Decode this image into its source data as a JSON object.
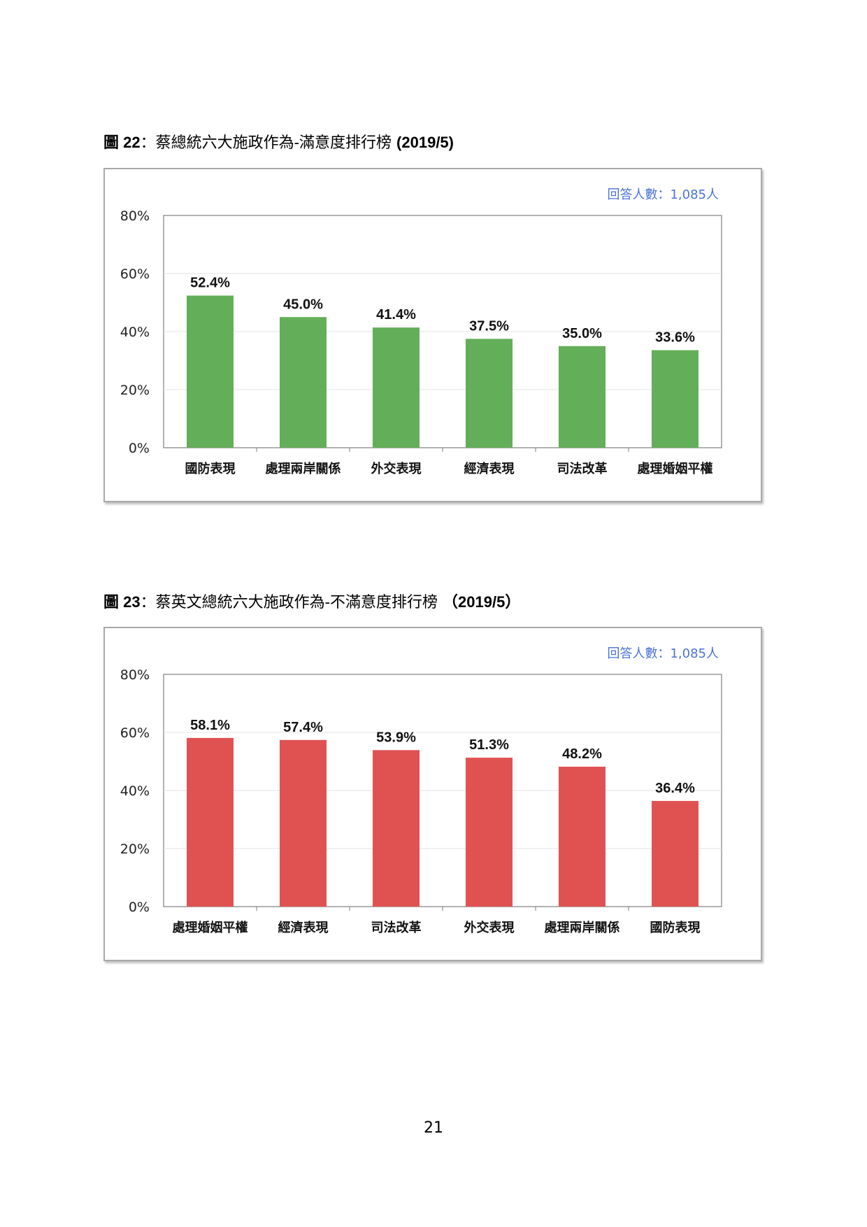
{
  "page": {
    "number": "21"
  },
  "figures": [
    {
      "caption_num": "圖 22",
      "caption_colon": "：",
      "caption_text": "蔡總統六大施政作為-滿意度排行榜",
      "caption_date": "(2019/5)",
      "respondents": "回答人數：1,085人",
      "bar_color": "#63ae58"
    },
    {
      "caption_num": "圖 23",
      "caption_colon": "：",
      "caption_text": "蔡英文總統六大施政作為-不滿意度排行榜",
      "caption_date": "（2019/5）",
      "respondents": "回答人數：1,085人",
      "bar_color": "#e05252"
    }
  ],
  "chart_data": [
    {
      "type": "bar",
      "title": "",
      "xlabel": "",
      "ylabel": "",
      "ylim": [
        0,
        80
      ],
      "yticks": [
        "0%",
        "20%",
        "40%",
        "60%",
        "80%"
      ],
      "categories": [
        "國防表現",
        "處理兩岸關係",
        "外交表現",
        "經濟表現",
        "司法改革",
        "處理婚姻平權"
      ],
      "values": [
        52.4,
        45.0,
        41.4,
        37.5,
        35.0,
        33.6
      ],
      "value_labels": [
        "52.4%",
        "45.0%",
        "41.4%",
        "37.5%",
        "35.0%",
        "33.6%"
      ],
      "grid": true
    },
    {
      "type": "bar",
      "title": "",
      "xlabel": "",
      "ylabel": "",
      "ylim": [
        0,
        80
      ],
      "yticks": [
        "0%",
        "20%",
        "40%",
        "60%",
        "80%"
      ],
      "categories": [
        "處理婚姻平權",
        "經濟表現",
        "司法改革",
        "外交表現",
        "處理兩岸關係",
        "國防表現"
      ],
      "values": [
        58.1,
        57.4,
        53.9,
        51.3,
        48.2,
        36.4
      ],
      "value_labels": [
        "58.1%",
        "57.4%",
        "53.9%",
        "51.3%",
        "48.2%",
        "36.4%"
      ],
      "grid": true
    }
  ]
}
